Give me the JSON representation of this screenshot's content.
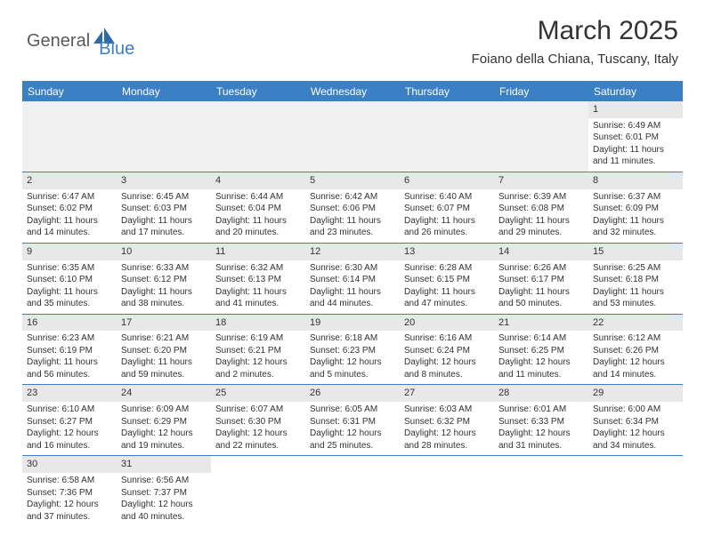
{
  "logo": {
    "part1": "General",
    "part2": "Blue"
  },
  "title": "March 2025",
  "location": "Foiano della Chiana, Tuscany, Italy",
  "colors": {
    "header_bg": "#3b7fc4",
    "header_text": "#ffffff",
    "daynum_bg": "#e8e8e8",
    "border": "#3b7fc4",
    "pad_bg": "#f0f0f0",
    "text": "#333333"
  },
  "day_headers": [
    "Sunday",
    "Monday",
    "Tuesday",
    "Wednesday",
    "Thursday",
    "Friday",
    "Saturday"
  ],
  "weeks": [
    [
      {
        "n": "",
        "sr": "",
        "ss": "",
        "dl": ""
      },
      {
        "n": "",
        "sr": "",
        "ss": "",
        "dl": ""
      },
      {
        "n": "",
        "sr": "",
        "ss": "",
        "dl": ""
      },
      {
        "n": "",
        "sr": "",
        "ss": "",
        "dl": ""
      },
      {
        "n": "",
        "sr": "",
        "ss": "",
        "dl": ""
      },
      {
        "n": "",
        "sr": "",
        "ss": "",
        "dl": ""
      },
      {
        "n": "1",
        "sr": "Sunrise: 6:49 AM",
        "ss": "Sunset: 6:01 PM",
        "dl": "Daylight: 11 hours and 11 minutes."
      }
    ],
    [
      {
        "n": "2",
        "sr": "Sunrise: 6:47 AM",
        "ss": "Sunset: 6:02 PM",
        "dl": "Daylight: 11 hours and 14 minutes."
      },
      {
        "n": "3",
        "sr": "Sunrise: 6:45 AM",
        "ss": "Sunset: 6:03 PM",
        "dl": "Daylight: 11 hours and 17 minutes."
      },
      {
        "n": "4",
        "sr": "Sunrise: 6:44 AM",
        "ss": "Sunset: 6:04 PM",
        "dl": "Daylight: 11 hours and 20 minutes."
      },
      {
        "n": "5",
        "sr": "Sunrise: 6:42 AM",
        "ss": "Sunset: 6:06 PM",
        "dl": "Daylight: 11 hours and 23 minutes."
      },
      {
        "n": "6",
        "sr": "Sunrise: 6:40 AM",
        "ss": "Sunset: 6:07 PM",
        "dl": "Daylight: 11 hours and 26 minutes."
      },
      {
        "n": "7",
        "sr": "Sunrise: 6:39 AM",
        "ss": "Sunset: 6:08 PM",
        "dl": "Daylight: 11 hours and 29 minutes."
      },
      {
        "n": "8",
        "sr": "Sunrise: 6:37 AM",
        "ss": "Sunset: 6:09 PM",
        "dl": "Daylight: 11 hours and 32 minutes."
      }
    ],
    [
      {
        "n": "9",
        "sr": "Sunrise: 6:35 AM",
        "ss": "Sunset: 6:10 PM",
        "dl": "Daylight: 11 hours and 35 minutes."
      },
      {
        "n": "10",
        "sr": "Sunrise: 6:33 AM",
        "ss": "Sunset: 6:12 PM",
        "dl": "Daylight: 11 hours and 38 minutes."
      },
      {
        "n": "11",
        "sr": "Sunrise: 6:32 AM",
        "ss": "Sunset: 6:13 PM",
        "dl": "Daylight: 11 hours and 41 minutes."
      },
      {
        "n": "12",
        "sr": "Sunrise: 6:30 AM",
        "ss": "Sunset: 6:14 PM",
        "dl": "Daylight: 11 hours and 44 minutes."
      },
      {
        "n": "13",
        "sr": "Sunrise: 6:28 AM",
        "ss": "Sunset: 6:15 PM",
        "dl": "Daylight: 11 hours and 47 minutes."
      },
      {
        "n": "14",
        "sr": "Sunrise: 6:26 AM",
        "ss": "Sunset: 6:17 PM",
        "dl": "Daylight: 11 hours and 50 minutes."
      },
      {
        "n": "15",
        "sr": "Sunrise: 6:25 AM",
        "ss": "Sunset: 6:18 PM",
        "dl": "Daylight: 11 hours and 53 minutes."
      }
    ],
    [
      {
        "n": "16",
        "sr": "Sunrise: 6:23 AM",
        "ss": "Sunset: 6:19 PM",
        "dl": "Daylight: 11 hours and 56 minutes."
      },
      {
        "n": "17",
        "sr": "Sunrise: 6:21 AM",
        "ss": "Sunset: 6:20 PM",
        "dl": "Daylight: 11 hours and 59 minutes."
      },
      {
        "n": "18",
        "sr": "Sunrise: 6:19 AM",
        "ss": "Sunset: 6:21 PM",
        "dl": "Daylight: 12 hours and 2 minutes."
      },
      {
        "n": "19",
        "sr": "Sunrise: 6:18 AM",
        "ss": "Sunset: 6:23 PM",
        "dl": "Daylight: 12 hours and 5 minutes."
      },
      {
        "n": "20",
        "sr": "Sunrise: 6:16 AM",
        "ss": "Sunset: 6:24 PM",
        "dl": "Daylight: 12 hours and 8 minutes."
      },
      {
        "n": "21",
        "sr": "Sunrise: 6:14 AM",
        "ss": "Sunset: 6:25 PM",
        "dl": "Daylight: 12 hours and 11 minutes."
      },
      {
        "n": "22",
        "sr": "Sunrise: 6:12 AM",
        "ss": "Sunset: 6:26 PM",
        "dl": "Daylight: 12 hours and 14 minutes."
      }
    ],
    [
      {
        "n": "23",
        "sr": "Sunrise: 6:10 AM",
        "ss": "Sunset: 6:27 PM",
        "dl": "Daylight: 12 hours and 16 minutes."
      },
      {
        "n": "24",
        "sr": "Sunrise: 6:09 AM",
        "ss": "Sunset: 6:29 PM",
        "dl": "Daylight: 12 hours and 19 minutes."
      },
      {
        "n": "25",
        "sr": "Sunrise: 6:07 AM",
        "ss": "Sunset: 6:30 PM",
        "dl": "Daylight: 12 hours and 22 minutes."
      },
      {
        "n": "26",
        "sr": "Sunrise: 6:05 AM",
        "ss": "Sunset: 6:31 PM",
        "dl": "Daylight: 12 hours and 25 minutes."
      },
      {
        "n": "27",
        "sr": "Sunrise: 6:03 AM",
        "ss": "Sunset: 6:32 PM",
        "dl": "Daylight: 12 hours and 28 minutes."
      },
      {
        "n": "28",
        "sr": "Sunrise: 6:01 AM",
        "ss": "Sunset: 6:33 PM",
        "dl": "Daylight: 12 hours and 31 minutes."
      },
      {
        "n": "29",
        "sr": "Sunrise: 6:00 AM",
        "ss": "Sunset: 6:34 PM",
        "dl": "Daylight: 12 hours and 34 minutes."
      }
    ],
    [
      {
        "n": "30",
        "sr": "Sunrise: 6:58 AM",
        "ss": "Sunset: 7:36 PM",
        "dl": "Daylight: 12 hours and 37 minutes."
      },
      {
        "n": "31",
        "sr": "Sunrise: 6:56 AM",
        "ss": "Sunset: 7:37 PM",
        "dl": "Daylight: 12 hours and 40 minutes."
      },
      {
        "n": "",
        "sr": "",
        "ss": "",
        "dl": ""
      },
      {
        "n": "",
        "sr": "",
        "ss": "",
        "dl": ""
      },
      {
        "n": "",
        "sr": "",
        "ss": "",
        "dl": ""
      },
      {
        "n": "",
        "sr": "",
        "ss": "",
        "dl": ""
      },
      {
        "n": "",
        "sr": "",
        "ss": "",
        "dl": ""
      }
    ]
  ]
}
